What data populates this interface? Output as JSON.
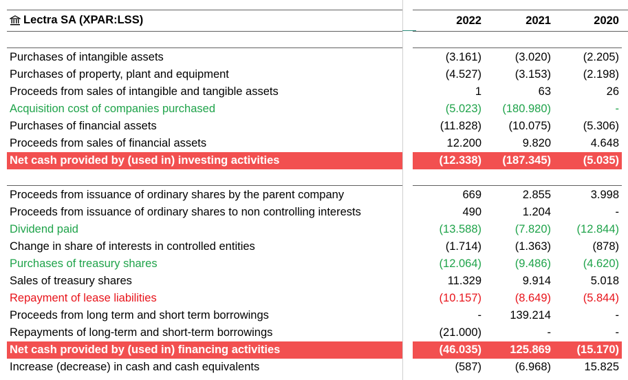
{
  "company": {
    "title": "Lectra SA (XPAR:LSS)",
    "icon": "bank-icon"
  },
  "years": [
    "2022",
    "2021",
    "2020"
  ],
  "colors": {
    "highlight": "#f25050",
    "green": "#1fa34a",
    "red": "#e8141b"
  },
  "investing": [
    {
      "label": "Purchases of intangible assets",
      "values": [
        "(3.161)",
        "(3.020)",
        "(2.205)"
      ],
      "style": "normal"
    },
    {
      "label": "Purchases of property, plant and equipment",
      "values": [
        "(4.527)",
        "(3.153)",
        "(2.198)"
      ],
      "style": "normal"
    },
    {
      "label": "Proceeds from sales of intangible and tangible assets",
      "values": [
        "1",
        "63",
        "26"
      ],
      "style": "normal"
    },
    {
      "label": "Acquisition cost of companies purchased",
      "values": [
        "(5.023)",
        "(180.980)",
        "-"
      ],
      "style": "green"
    },
    {
      "label": "Purchases of financial assets",
      "values": [
        "(11.828)",
        "(10.075)",
        "(5.306)"
      ],
      "style": "normal"
    },
    {
      "label": "Proceeds from sales of financial assets",
      "values": [
        "12.200",
        "9.820",
        "4.648"
      ],
      "style": "normal"
    },
    {
      "label": "Net cash provided by (used in) investing activities",
      "values": [
        "(12.338)",
        "(187.345)",
        "(5.035)"
      ],
      "style": "total"
    }
  ],
  "financing": [
    {
      "label": "Proceeds from issuance of ordinary shares by the parent company",
      "values": [
        "669",
        "2.855",
        "3.998"
      ],
      "style": "normal"
    },
    {
      "label": "Proceeds from issuance of ordinary shares to non controlling interests",
      "values": [
        "490",
        "1.204",
        "-"
      ],
      "style": "normal"
    },
    {
      "label": "Dividend paid",
      "values": [
        "(13.588)",
        "(7.820)",
        "(12.844)"
      ],
      "style": "green"
    },
    {
      "label": "Change in share of interests in controlled entities",
      "values": [
        "(1.714)",
        "(1.363)",
        "(878)"
      ],
      "style": "normal"
    },
    {
      "label": "Purchases of treasury shares",
      "values": [
        "(12.064)",
        "(9.486)",
        "(4.620)"
      ],
      "style": "green"
    },
    {
      "label": "Sales of treasury shares",
      "values": [
        "11.329",
        "9.914",
        "5.018"
      ],
      "style": "normal"
    },
    {
      "label": "Repayment of lease liabilities",
      "values": [
        "(10.157)",
        "(8.649)",
        "(5.844)"
      ],
      "style": "red"
    },
    {
      "label": "Proceeds from long term and short term borrowings",
      "values": [
        "-",
        "139.214",
        "-"
      ],
      "style": "normal"
    },
    {
      "label": "Repayments of long-term and short-term borrowings",
      "values": [
        "(21.000)",
        "-",
        "-"
      ],
      "style": "normal"
    },
    {
      "label": "Net cash provided by (used in) financing activities",
      "values": [
        "(46.035)",
        "125.869",
        "(15.170)"
      ],
      "style": "total"
    },
    {
      "label": "Increase (decrease) in cash and cash equivalents",
      "values": [
        "(587)",
        "(6.968)",
        "15.825"
      ],
      "style": "normal"
    }
  ]
}
